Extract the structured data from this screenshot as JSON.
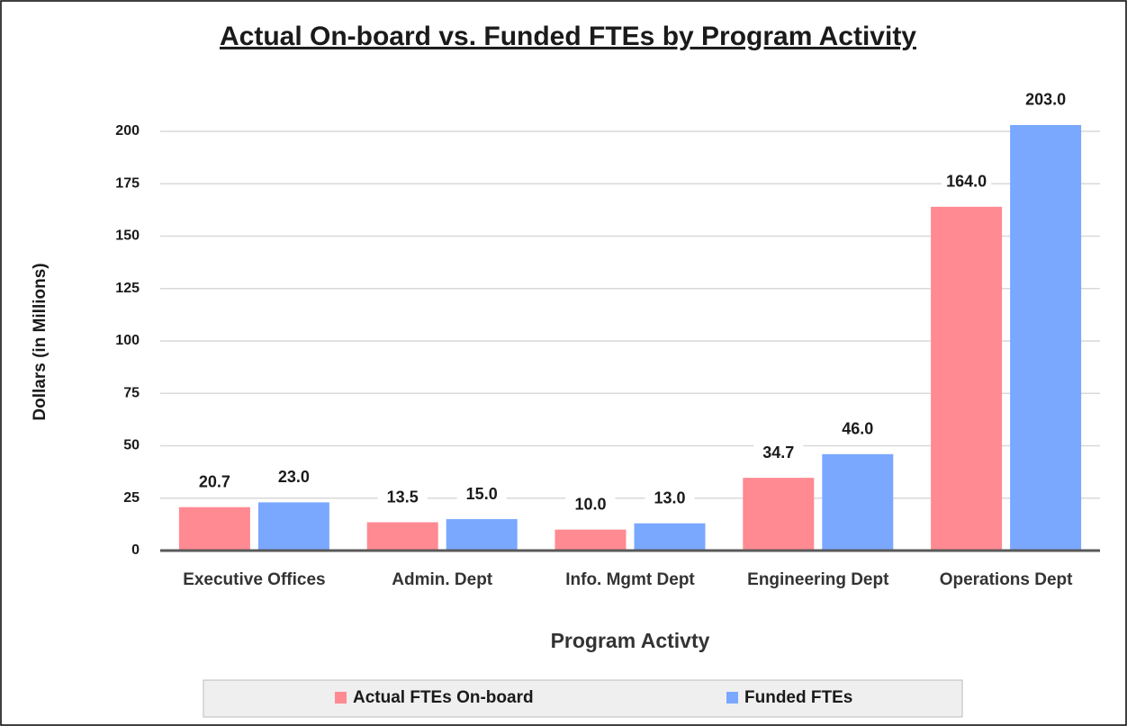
{
  "chart_data": {
    "type": "bar",
    "title": "Actual On-board vs. Funded FTEs by Program Activity",
    "xlabel": "Program Activty",
    "ylabel": "Dollars (in Millions)",
    "categories": [
      "Executive Offices",
      "Admin. Dept",
      "Info. Mgmt Dept",
      "Engineering Dept",
      "Operations Dept"
    ],
    "series": [
      {
        "name": "Actual FTEs On-board",
        "color": "#ff8a92",
        "values": [
          20.7,
          13.5,
          10.0,
          34.7,
          164.0
        ],
        "value_labels": [
          "20.7",
          "13.5",
          "10.0",
          "34.7",
          "164.0"
        ]
      },
      {
        "name": "Funded FTEs",
        "color": "#7aa8ff",
        "values": [
          23.0,
          15.0,
          13.0,
          46.0,
          203.0
        ],
        "value_labels": [
          "23.0",
          "15.0",
          "13.0",
          "46.0",
          "203.0"
        ]
      }
    ],
    "ylim": [
      0,
      215
    ],
    "yticks": [
      0,
      25,
      50,
      75,
      100,
      125,
      150,
      175,
      200
    ],
    "grid": true,
    "legend": "bottom"
  }
}
